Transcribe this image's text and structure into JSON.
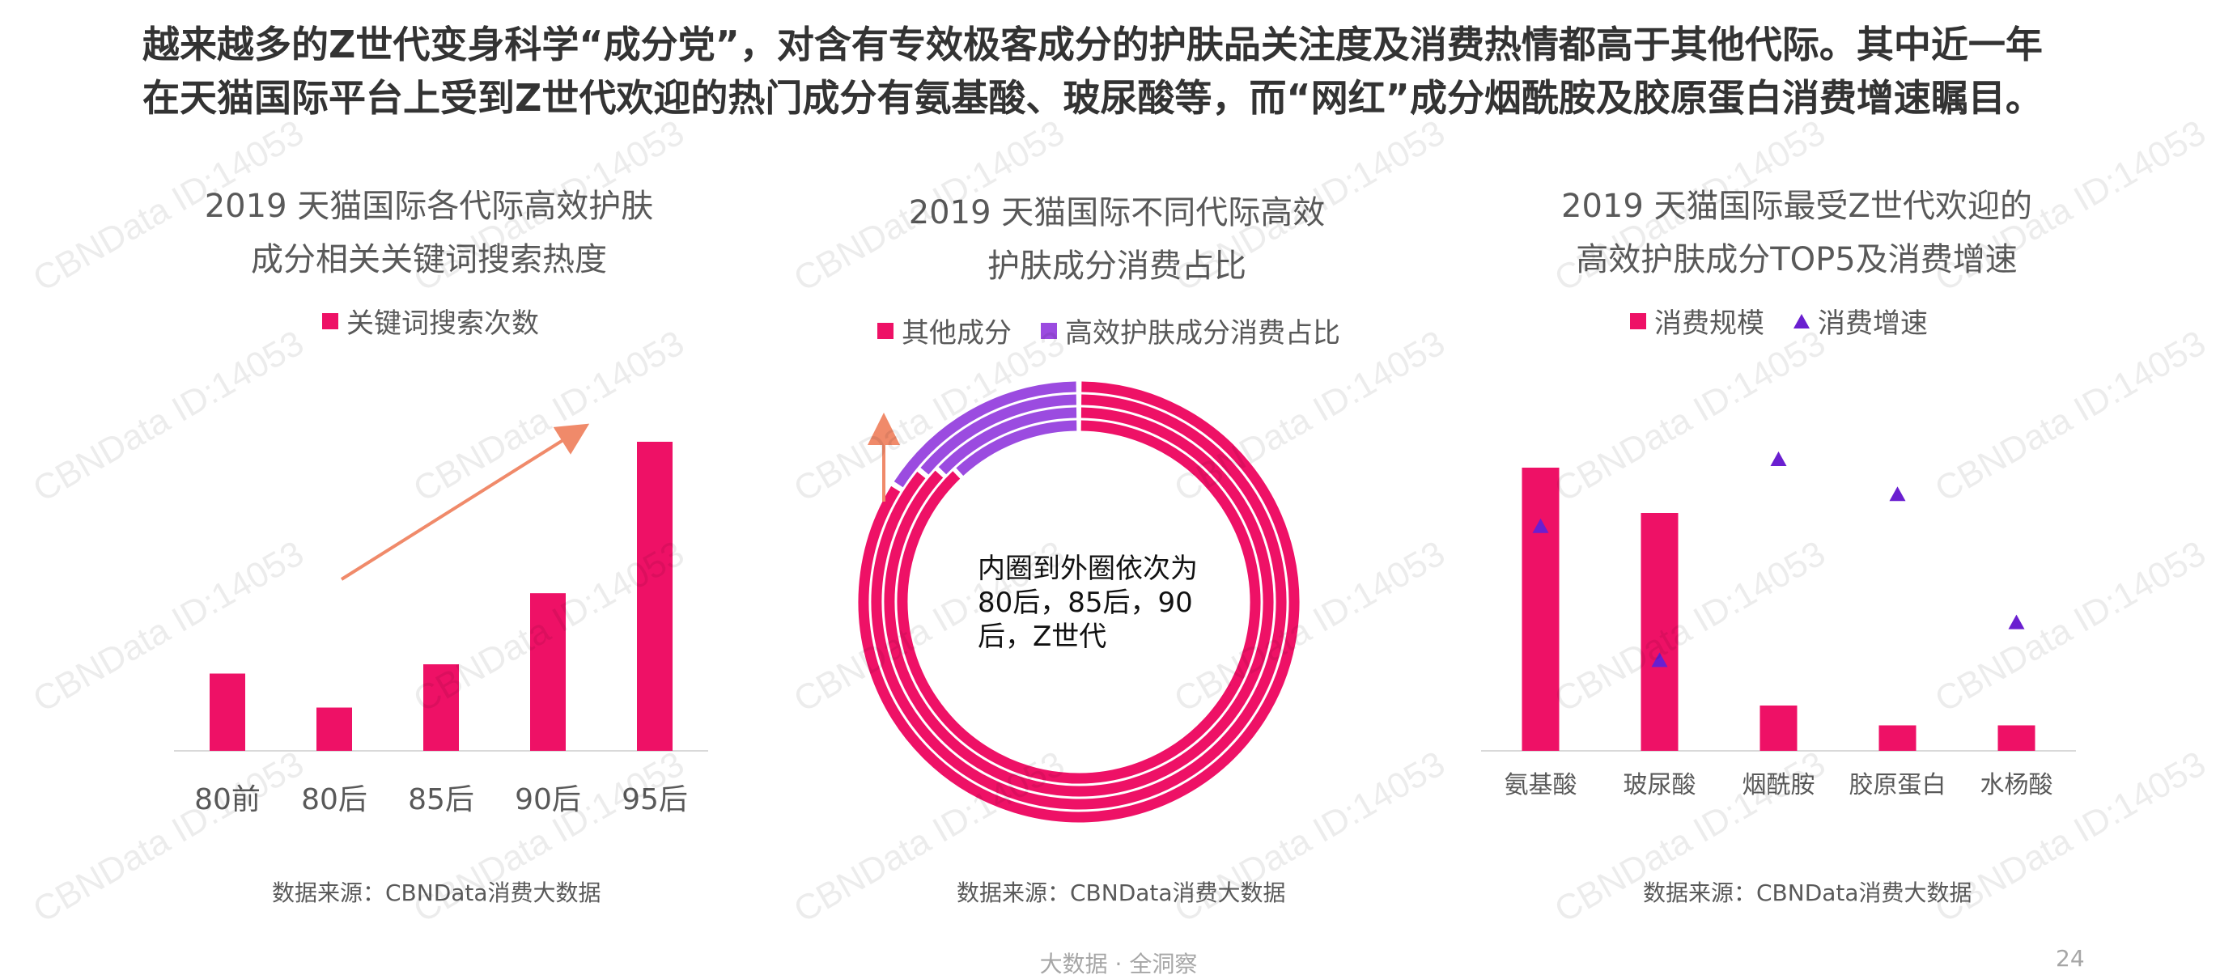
{
  "headline": {
    "line1": "越来越多的Z世代变身科学“成分党”，对含有专效极客成分的护肤品关注度及消费热情都高于其他代际。其中近一年",
    "line2": "在天猫国际平台上受到Z世代欢迎的热门成分有氨基酸、玻尿酸等，而“网红”成分烟酰胺及胶原蛋白消费增速瞩目。"
  },
  "colors": {
    "pink": "#ee1166",
    "purple": "#9b4be0",
    "triangle": "#6a1fd0",
    "arrow": "#f08a6a"
  },
  "chart1": {
    "title_line1": "2019 天猫国际各代际高效护肤",
    "title_line2": "成分相关关键词搜索热度",
    "legend": "关键词搜索次数",
    "source": "数据来源：CBNData消费大数据"
  },
  "chart2": {
    "title_line1": "2019 天猫国际不同代际高效",
    "title_line2": "护肤成分消费占比",
    "legend_other": "其他成分",
    "legend_efficacy": "高效护肤成分消费占比",
    "annotation_lines": [
      "内圈到外圈依次为",
      "80后，85后，90",
      "后，Z世代"
    ],
    "source": "数据来源：CBNData消费大数据"
  },
  "chart3": {
    "title_line1": "2019 天猫国际最受Z世代欢迎的",
    "title_line2": "高效护肤成分TOP5及消费增速",
    "legend_scale": "消费规模",
    "legend_growth": "消费增速",
    "source": "数据来源：CBNData消费大数据"
  },
  "chart_data": [
    {
      "type": "bar",
      "categories": [
        "80前",
        "80后",
        "85后",
        "90后",
        "95后"
      ],
      "values": [
        25,
        14,
        28,
        51,
        100
      ],
      "ylim": [
        0,
        100
      ],
      "legend": "关键词搜索次数"
    },
    {
      "type": "pie",
      "rings": [
        "80后",
        "85后",
        "90后",
        "Z世代"
      ],
      "series": [
        {
          "name": "其他成分",
          "values": [
            88,
            87,
            86,
            84
          ]
        },
        {
          "name": "高效护肤成分消费占比",
          "values": [
            12,
            13,
            14,
            16
          ]
        }
      ]
    },
    {
      "type": "bar",
      "categories": [
        "氨基酸",
        "玻尿酸",
        "烟酰胺",
        "胶原蛋白",
        "水杨酸"
      ],
      "series": [
        {
          "name": "消费规模",
          "values": [
            100,
            84,
            16,
            9,
            9
          ]
        },
        {
          "name": "消费增速",
          "values": [
            77,
            31,
            100,
            88,
            44
          ]
        }
      ],
      "ylim": [
        0,
        100
      ]
    }
  ],
  "footer": "大数据 · 全洞察",
  "page_number": "24",
  "watermark": "CBNData ID:14053"
}
